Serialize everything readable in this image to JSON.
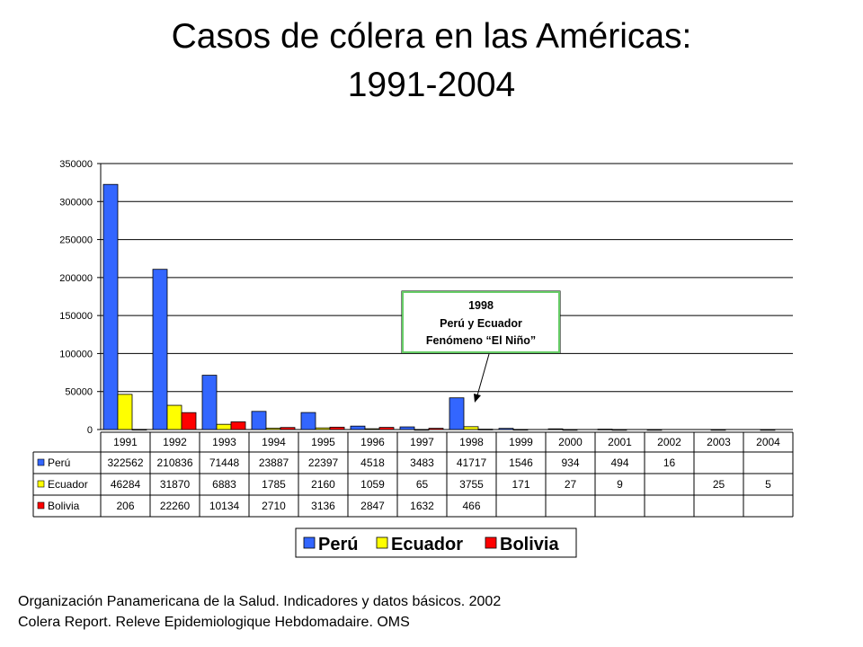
{
  "title": {
    "line1": "Casos de cólera en las Américas:",
    "line2": "1991-2004"
  },
  "chart_data": {
    "type": "bar",
    "categories": [
      "1991",
      "1992",
      "1993",
      "1994",
      "1995",
      "1996",
      "1997",
      "1998",
      "1999",
      "2000",
      "2001",
      "2002",
      "2003",
      "2004"
    ],
    "series": [
      {
        "name": "Perú",
        "color": "#3366ff",
        "values": [
          322562,
          210836,
          71448,
          23887,
          22397,
          4518,
          3483,
          41717,
          1546,
          934,
          494,
          16,
          null,
          null
        ]
      },
      {
        "name": "Ecuador",
        "color": "#ffff00",
        "values": [
          46284,
          31870,
          6883,
          1785,
          2160,
          1059,
          65,
          3755,
          171,
          27,
          9,
          null,
          25,
          5
        ]
      },
      {
        "name": "Bolivia",
        "color": "#ff0000",
        "values": [
          206,
          22260,
          10134,
          2710,
          3136,
          2847,
          1632,
          466,
          null,
          null,
          null,
          null,
          null,
          null
        ]
      }
    ],
    "ylim": [
      0,
      350000
    ],
    "yticks": [
      "0",
      "50000",
      "100000",
      "150000",
      "200000",
      "250000",
      "300000",
      "350000"
    ],
    "grid": true,
    "legend_position": "bottom",
    "data_table": true,
    "annotation": {
      "line1": "1998",
      "line2": "Perú y Ecuador",
      "line3": "Fenómeno “El Niño”"
    }
  },
  "source": {
    "line1": "Organización Panamericana de la Salud. Indicadores y datos básicos. 2002",
    "line2": "Colera Report. Releve Epidemiologique Hebdomadaire. OMS"
  }
}
